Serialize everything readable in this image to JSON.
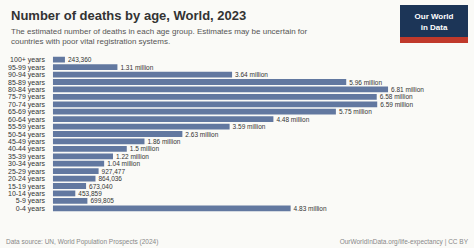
{
  "chart_data": {
    "type": "bar",
    "orientation": "horizontal",
    "title": "Number of deaths by age, World, 2023",
    "subtitle": "The estimated number of deaths in each age group. Estimates may be uncertain for\ncountries with poor vital registration systems.",
    "annotations": [
      "Data source: UN, World Population Prospects (2024)",
      "OurWorldInData.org/life-expectancy | CC BY",
      "Our World",
      "in Data"
    ],
    "categories": [
      "0-4 years",
      "5-9 years",
      "10-14 years",
      "15-19 years",
      "20-24 years",
      "25-29 years",
      "30-34 years",
      "35-39 years",
      "40-44 years",
      "45-49 years",
      "50-54 years",
      "55-59 years",
      "60-64 years",
      "65-69 years",
      "70-74 years",
      "75-79 years",
      "80-84 years",
      "85-89 years",
      "90-94 years",
      "95-99 years",
      "100+ years"
    ],
    "values": [
      4830000,
      699805,
      453859,
      673040,
      864036,
      927477,
      1040000,
      1220000,
      1500000,
      1860000,
      2630000,
      3590000,
      4480000,
      5750000,
      6590000,
      6580000,
      6810000,
      5960000,
      3640000,
      1310000,
      243360
    ],
    "value_labels": [
      "4.83 million",
      "699,805",
      "453,859",
      "673,040",
      "864,036",
      "927,477",
      "1.04 million",
      "1.22 million",
      "1.5 million",
      "1.86 million",
      "2.63 million",
      "3.59 million",
      "4.48 million",
      "5.75 million",
      "6.59 million",
      "6.58 million",
      "6.81 million",
      "5.96 million",
      "3.64 million",
      "1.31 million",
      "243,360"
    ],
    "data_labels": true,
    "color": "#6278a0",
    "xlim": [
      0,
      7500000
    ],
    "tick_labels": "y",
    "grid": false
  }
}
